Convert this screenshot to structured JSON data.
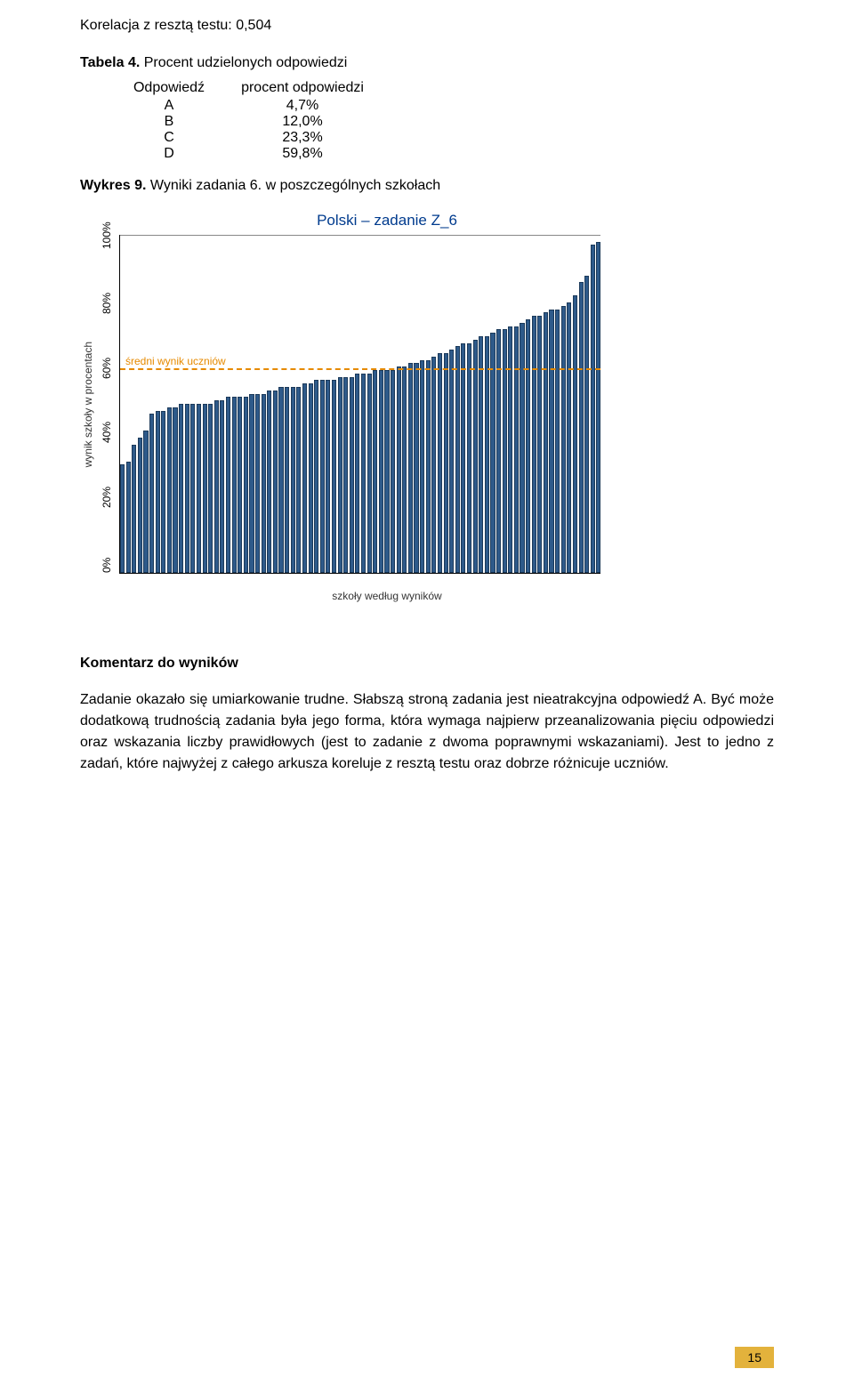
{
  "correlation_line": {
    "label": "Korelacja z resztą testu:",
    "value": "0,504"
  },
  "table_caption": {
    "prefix": "Tabela 4.",
    "text": "Procent udzielonych odpowiedzi"
  },
  "response_table": {
    "col_a_header": "Odpowiedź",
    "col_b_header": "procent odpowiedzi",
    "rows": [
      {
        "label": "A",
        "value": "4,7%"
      },
      {
        "label": "B",
        "value": "12,0%"
      },
      {
        "label": "C",
        "value": "23,3%"
      },
      {
        "label": "D",
        "value": "59,8%"
      }
    ]
  },
  "chart_caption": {
    "prefix": "Wykres 9.",
    "text1": "Wyniki zadania 6.",
    "text2": "w poszczególnych szkołach"
  },
  "chart": {
    "type": "bar",
    "title": "Polski – zadanie Z_6",
    "y_label": "wynik szkoły w procentach",
    "x_label": "szkoły według wyników",
    "y_ticks": [
      "0%",
      "20%",
      "40%",
      "60%",
      "80%",
      "100%"
    ],
    "ylim": [
      0,
      100
    ],
    "reference_line": {
      "y": 60,
      "label": "średni wynik uczniów",
      "color": "#e68a00"
    },
    "bar_color": "#2e5a8a",
    "bar_border_color": "#1c3a5a",
    "background": "#ffffff",
    "title_color": "#003b8e",
    "values": [
      32,
      33,
      38,
      40,
      42,
      47,
      48,
      48,
      49,
      49,
      50,
      50,
      50,
      50,
      50,
      50,
      51,
      51,
      52,
      52,
      52,
      52,
      53,
      53,
      53,
      54,
      54,
      55,
      55,
      55,
      55,
      56,
      56,
      57,
      57,
      57,
      57,
      58,
      58,
      58,
      59,
      59,
      59,
      60,
      60,
      60,
      60,
      61,
      61,
      62,
      62,
      63,
      63,
      64,
      65,
      65,
      66,
      67,
      68,
      68,
      69,
      70,
      70,
      71,
      72,
      72,
      73,
      73,
      74,
      75,
      76,
      76,
      77,
      78,
      78,
      79,
      80,
      82,
      86,
      88,
      97,
      98
    ]
  },
  "komentarz": {
    "heading": "Komentarz do wyników",
    "body": "Zadanie okazało się umiarkowanie trudne. Słabszą stroną zadania jest nieatrakcyjna odpowiedź A. Być może dodatkową trudnością zadania była jego forma, która wymaga najpierw przeanalizowania pięciu odpowiedzi oraz wskazania liczby prawidłowych (jest to zadanie z dwoma poprawnymi wskazaniami). Jest to jedno z zadań, które najwyżej z całego arkusza koreluje z resztą testu oraz dobrze różnicuje uczniów."
  },
  "page_number": "15"
}
